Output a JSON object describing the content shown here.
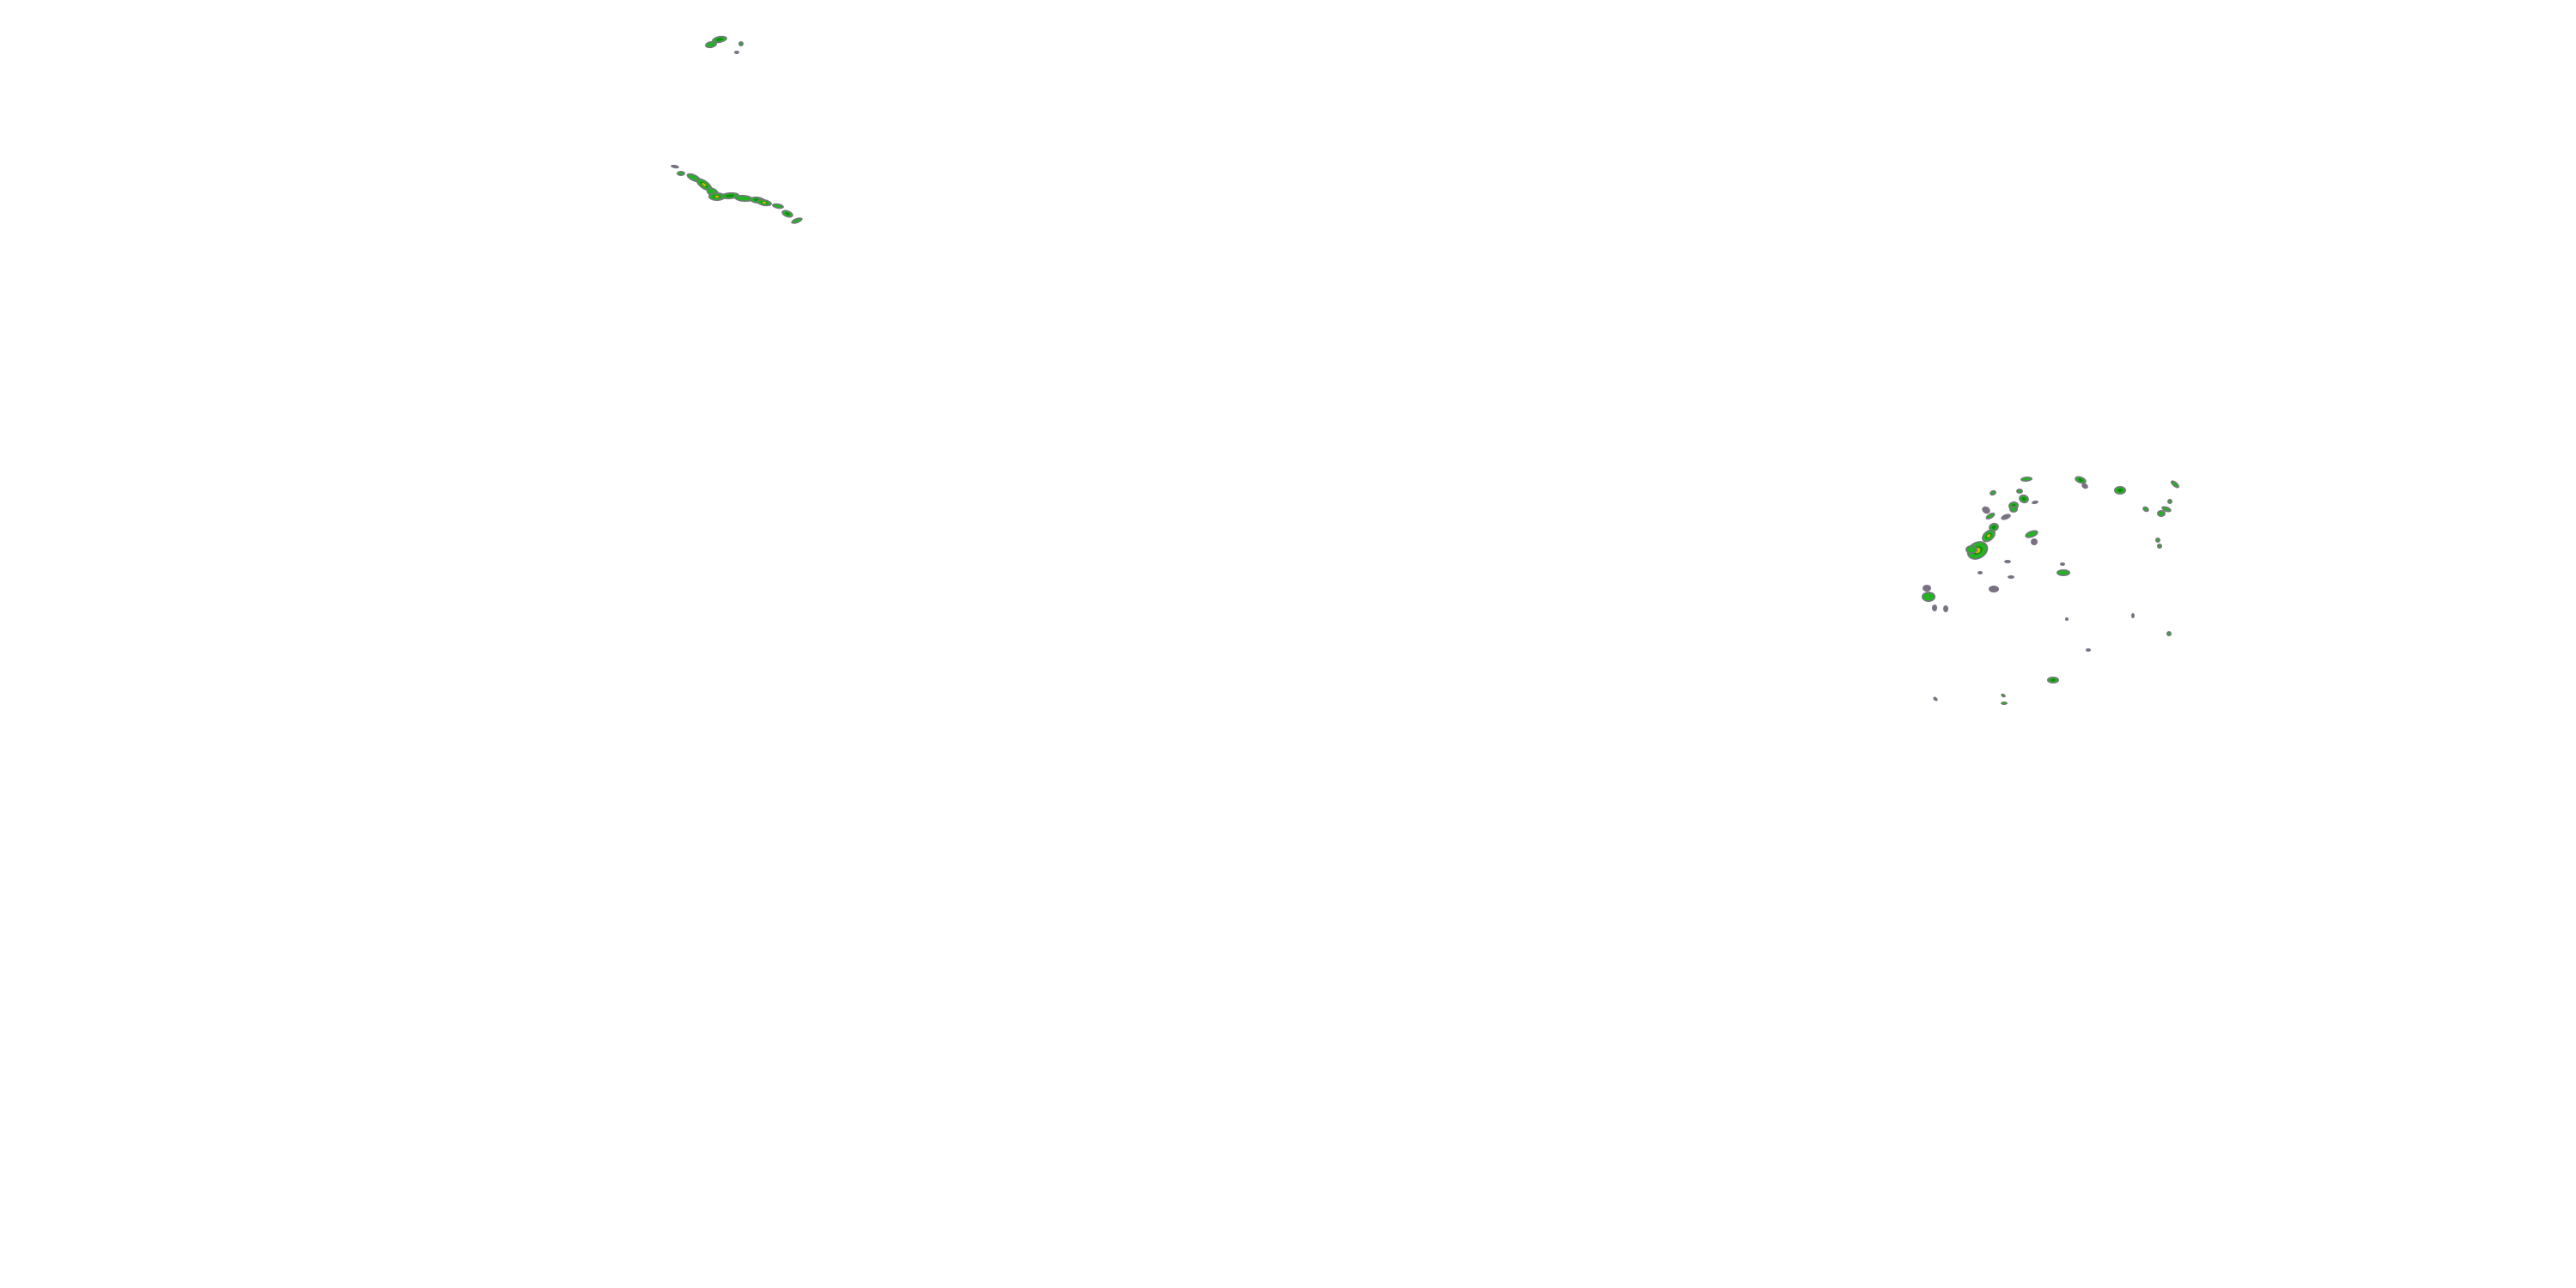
{
  "map": {
    "layer": "radar-reflectivity-overlay",
    "colors": {
      "edge": "#7a7282",
      "light": "#22b422",
      "moderate": "#0e8c0e",
      "heavy": "#d4b400",
      "intense": "#d08000",
      "background": "#ffffff"
    }
  }
}
